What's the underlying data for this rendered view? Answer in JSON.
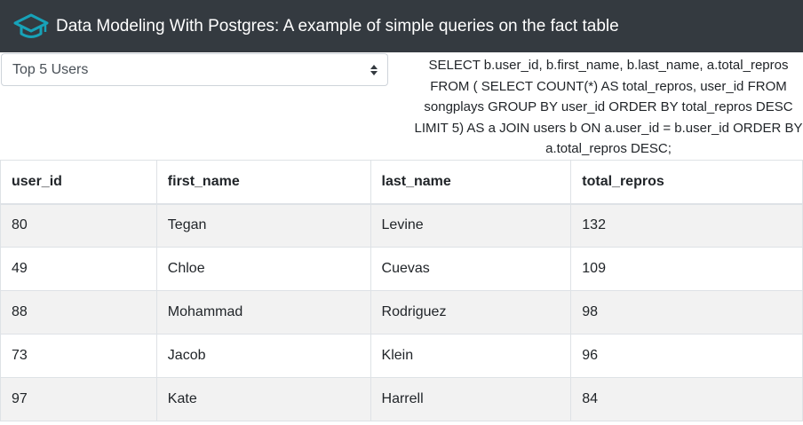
{
  "header": {
    "logo_icon": "graduation-cap-icon",
    "title": "Data Modeling With Postgres: A example of simple queries on the fact table",
    "background": "#343a40",
    "accent": "#17a2b8"
  },
  "query_select": {
    "selected": "Top 5 Users"
  },
  "query_text": "SELECT b.user_id, b.first_name, b.last_name, a.total_repros FROM ( SELECT COUNT(*) AS total_repros, user_id FROM songplays GROUP BY user_id ORDER BY total_repros DESC LIMIT 5) AS a JOIN users b ON a.user_id = b.user_id ORDER BY a.total_repros DESC;",
  "table": {
    "columns": [
      "user_id",
      "first_name",
      "last_name",
      "total_repros"
    ],
    "rows": [
      [
        "80",
        "Tegan",
        "Levine",
        "132"
      ],
      [
        "49",
        "Chloe",
        "Cuevas",
        "109"
      ],
      [
        "88",
        "Mohammad",
        "Rodriguez",
        "98"
      ],
      [
        "73",
        "Jacob",
        "Klein",
        "96"
      ],
      [
        "97",
        "Kate",
        "Harrell",
        "84"
      ]
    ]
  }
}
